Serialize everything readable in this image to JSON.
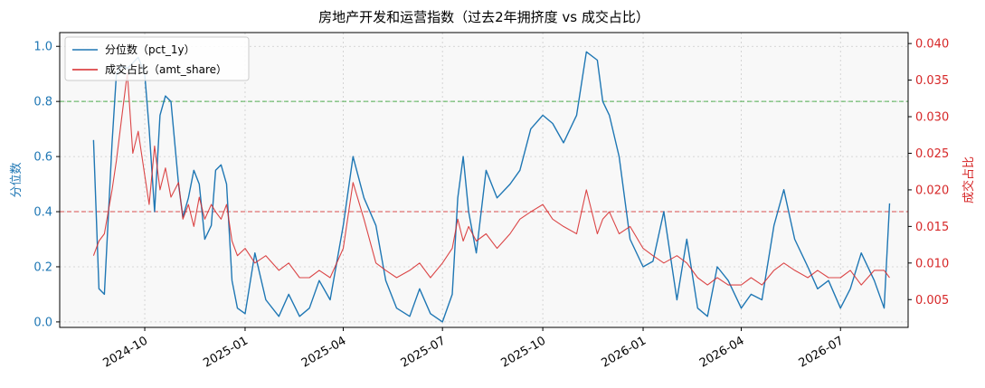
{
  "chart_data": {
    "type": "line",
    "title": "房地产开发和运营指数（过去2年拥挤度 vs 成交占比）",
    "xlabel": "",
    "ylabel": "分位数",
    "y2label": "成交占比",
    "x_tick_labels": [
      "2024-10",
      "2025-01",
      "2025-04",
      "2025-07",
      "2025-10",
      "2026-01",
      "2026-04",
      "2026-07"
    ],
    "x_range": [
      "2024-07-15",
      "2026-09-01"
    ],
    "ylim": [
      -0.02,
      1.05
    ],
    "y2lim": [
      0.0012,
      0.0415
    ],
    "y_ticks": [
      0.0,
      0.2,
      0.4,
      0.6,
      0.8,
      1.0
    ],
    "y_tick_labels": [
      "0.0",
      "0.2",
      "0.4",
      "0.6",
      "0.8",
      "1.0"
    ],
    "y2_ticks": [
      0.005,
      0.01,
      0.015,
      0.02,
      0.025,
      0.03,
      0.035,
      0.04
    ],
    "y2_tick_labels": [
      "0.005",
      "0.010",
      "0.015",
      "0.020",
      "0.025",
      "0.030",
      "0.035",
      "0.040"
    ],
    "grid": true,
    "legend_position": "upper-left",
    "hlines": [
      {
        "axis": "left",
        "value": 0.8,
        "color": "#2ca02c",
        "style": "dashed"
      },
      {
        "axis": "left",
        "value": 0.4,
        "color": "#d62728",
        "style": "dashed"
      }
    ],
    "series": [
      {
        "name": "分位数（pct_1y）",
        "axis": "left",
        "color": "#1f77b4",
        "x": [
          "2024-08-15",
          "2024-08-20",
          "2024-08-25",
          "2024-09-01",
          "2024-09-05",
          "2024-09-10",
          "2024-09-15",
          "2024-09-20",
          "2024-09-25",
          "2024-10-01",
          "2024-10-05",
          "2024-10-10",
          "2024-10-15",
          "2024-10-20",
          "2024-10-25",
          "2024-11-01",
          "2024-11-05",
          "2024-11-10",
          "2024-11-15",
          "2024-11-20",
          "2024-11-25",
          "2024-12-01",
          "2024-12-05",
          "2024-12-10",
          "2024-12-15",
          "2024-12-20",
          "2024-12-25",
          "2025-01-01",
          "2025-01-10",
          "2025-01-20",
          "2025-02-01",
          "2025-02-10",
          "2025-02-20",
          "2025-03-01",
          "2025-03-10",
          "2025-03-20",
          "2025-04-01",
          "2025-04-10",
          "2025-04-20",
          "2025-05-01",
          "2025-05-10",
          "2025-05-20",
          "2025-06-01",
          "2025-06-10",
          "2025-06-20",
          "2025-07-01",
          "2025-07-10",
          "2025-07-15",
          "2025-07-20",
          "2025-07-25",
          "2025-08-01",
          "2025-08-10",
          "2025-08-20",
          "2025-09-01",
          "2025-09-10",
          "2025-09-20",
          "2025-10-01",
          "2025-10-10",
          "2025-10-20",
          "2025-11-01",
          "2025-11-10",
          "2025-11-20",
          "2025-11-25",
          "2025-12-01",
          "2025-12-10",
          "2025-12-20",
          "2026-01-01",
          "2026-01-10",
          "2026-01-20",
          "2026-02-01",
          "2026-02-10",
          "2026-02-20",
          "2026-03-01",
          "2026-03-10",
          "2026-03-20",
          "2026-04-01",
          "2026-04-10",
          "2026-04-20",
          "2026-05-01",
          "2026-05-10",
          "2026-05-20",
          "2026-06-01",
          "2026-06-10",
          "2026-06-20",
          "2026-07-01",
          "2026-07-10",
          "2026-07-20",
          "2026-08-01",
          "2026-08-10",
          "2026-08-15"
        ],
        "values": [
          0.66,
          0.12,
          0.1,
          0.65,
          0.9,
          0.93,
          0.92,
          0.94,
          0.96,
          0.9,
          0.7,
          0.4,
          0.75,
          0.82,
          0.8,
          0.5,
          0.38,
          0.45,
          0.55,
          0.5,
          0.3,
          0.35,
          0.55,
          0.57,
          0.5,
          0.15,
          0.05,
          0.03,
          0.25,
          0.08,
          0.02,
          0.1,
          0.02,
          0.05,
          0.15,
          0.08,
          0.35,
          0.6,
          0.45,
          0.35,
          0.15,
          0.05,
          0.02,
          0.12,
          0.03,
          0.0,
          0.1,
          0.45,
          0.6,
          0.4,
          0.25,
          0.55,
          0.45,
          0.5,
          0.55,
          0.7,
          0.75,
          0.72,
          0.65,
          0.75,
          0.98,
          0.95,
          0.8,
          0.75,
          0.6,
          0.3,
          0.2,
          0.22,
          0.4,
          0.08,
          0.3,
          0.05,
          0.02,
          0.2,
          0.15,
          0.05,
          0.1,
          0.08,
          0.35,
          0.48,
          0.3,
          0.2,
          0.12,
          0.15,
          0.05,
          0.12,
          0.25,
          0.15,
          0.05,
          0.43
        ]
      },
      {
        "name": "成交占比（amt_share）",
        "axis": "right",
        "color": "#d62728",
        "x": [
          "2024-08-15",
          "2024-08-20",
          "2024-08-25",
          "2024-09-01",
          "2024-09-05",
          "2024-09-10",
          "2024-09-15",
          "2024-09-20",
          "2024-09-25",
          "2024-10-01",
          "2024-10-05",
          "2024-10-10",
          "2024-10-15",
          "2024-10-20",
          "2024-10-25",
          "2024-11-01",
          "2024-11-05",
          "2024-11-10",
          "2024-11-15",
          "2024-11-20",
          "2024-11-25",
          "2024-12-01",
          "2024-12-05",
          "2024-12-10",
          "2024-12-15",
          "2024-12-20",
          "2024-12-25",
          "2025-01-01",
          "2025-01-10",
          "2025-01-20",
          "2025-02-01",
          "2025-02-10",
          "2025-02-20",
          "2025-03-01",
          "2025-03-10",
          "2025-03-20",
          "2025-04-01",
          "2025-04-10",
          "2025-04-20",
          "2025-05-01",
          "2025-05-10",
          "2025-05-20",
          "2025-06-01",
          "2025-06-10",
          "2025-06-20",
          "2025-07-01",
          "2025-07-10",
          "2025-07-15",
          "2025-07-20",
          "2025-07-25",
          "2025-08-01",
          "2025-08-10",
          "2025-08-20",
          "2025-09-01",
          "2025-09-10",
          "2025-09-20",
          "2025-10-01",
          "2025-10-10",
          "2025-10-20",
          "2025-11-01",
          "2025-11-10",
          "2025-11-20",
          "2025-11-25",
          "2025-12-01",
          "2025-12-10",
          "2025-12-20",
          "2026-01-01",
          "2026-01-10",
          "2026-01-20",
          "2026-02-01",
          "2026-02-10",
          "2026-02-20",
          "2026-03-01",
          "2026-03-10",
          "2026-03-20",
          "2026-04-01",
          "2026-04-10",
          "2026-04-20",
          "2026-05-01",
          "2026-05-10",
          "2026-05-20",
          "2026-06-01",
          "2026-06-10",
          "2026-06-20",
          "2026-07-01",
          "2026-07-10",
          "2026-07-20",
          "2026-08-01",
          "2026-08-10",
          "2026-08-15"
        ],
        "values": [
          0.011,
          0.013,
          0.014,
          0.02,
          0.024,
          0.03,
          0.036,
          0.025,
          0.028,
          0.022,
          0.018,
          0.026,
          0.02,
          0.023,
          0.019,
          0.021,
          0.016,
          0.018,
          0.015,
          0.019,
          0.016,
          0.018,
          0.017,
          0.016,
          0.018,
          0.013,
          0.011,
          0.012,
          0.01,
          0.011,
          0.009,
          0.01,
          0.008,
          0.008,
          0.009,
          0.008,
          0.012,
          0.021,
          0.016,
          0.01,
          0.009,
          0.008,
          0.009,
          0.01,
          0.008,
          0.01,
          0.012,
          0.016,
          0.013,
          0.015,
          0.013,
          0.014,
          0.012,
          0.014,
          0.016,
          0.017,
          0.018,
          0.016,
          0.015,
          0.014,
          0.02,
          0.014,
          0.016,
          0.017,
          0.014,
          0.015,
          0.012,
          0.011,
          0.01,
          0.011,
          0.01,
          0.008,
          0.007,
          0.008,
          0.007,
          0.007,
          0.008,
          0.007,
          0.009,
          0.01,
          0.009,
          0.008,
          0.009,
          0.008,
          0.008,
          0.009,
          0.007,
          0.009,
          0.009,
          0.008
        ]
      }
    ]
  }
}
